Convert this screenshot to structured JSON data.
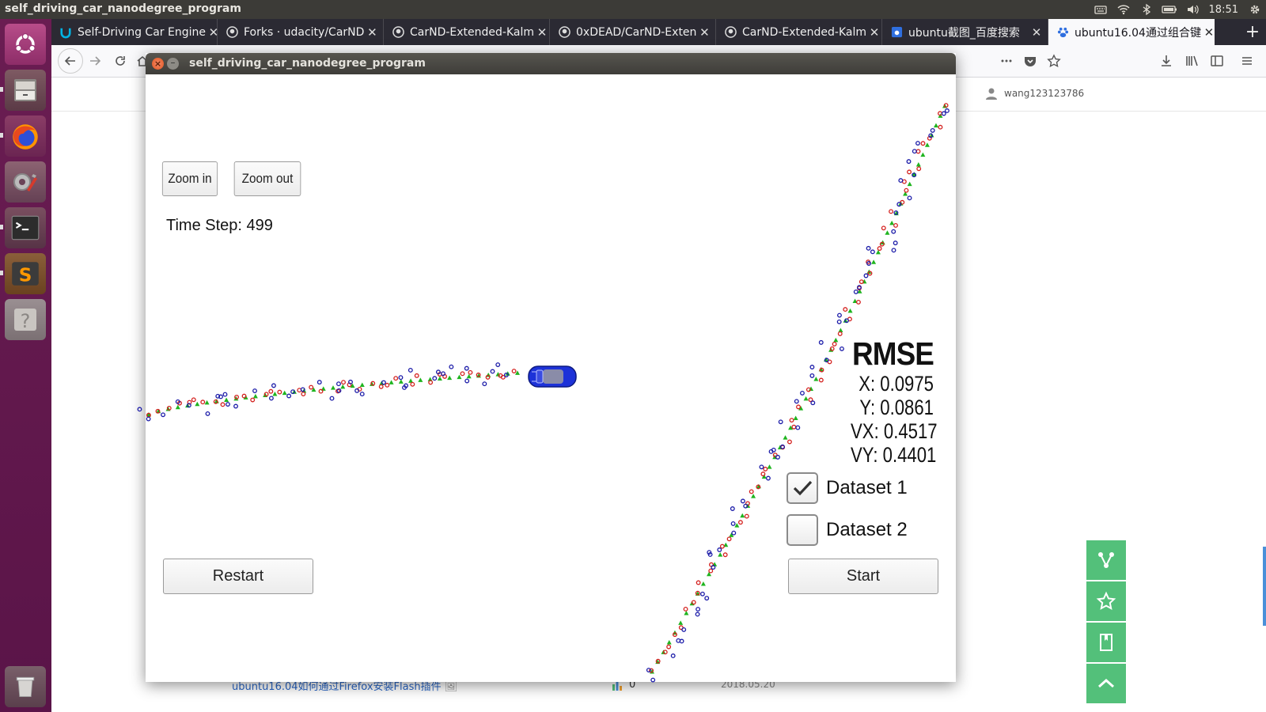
{
  "top_panel": {
    "title": "self_driving_car_nanodegree_program",
    "time": "18:51"
  },
  "launcher": {
    "items": [
      "ubuntu-logo",
      "files",
      "firefox",
      "system-settings",
      "terminal",
      "sublime-text",
      "help"
    ]
  },
  "browser": {
    "tabs": [
      {
        "label": "Self-Driving Car Engine",
        "icon": "udacity-icon"
      },
      {
        "label": "Forks · udacity/CarND",
        "icon": "github-icon"
      },
      {
        "label": "CarND-Extended-Kalm",
        "icon": "github-icon"
      },
      {
        "label": "0xDEAD/CarND-Exten",
        "icon": "github-icon"
      },
      {
        "label": "CarND-Extended-Kalm",
        "icon": "github-icon"
      },
      {
        "label": "ubuntu截图_百度搜索",
        "icon": "baidu-icon"
      },
      {
        "label": "ubuntu16.04通过组合键",
        "icon": "baidu-icon"
      }
    ],
    "active_tab": 6
  },
  "webpage": {
    "username": "wang123123786",
    "article_link": "ubuntu16.04如何通过Firefox安装Flash插件",
    "article_count": "0",
    "article_date": "2018.05.20"
  },
  "simulator": {
    "window_title": "self_driving_car_nanodegree_program",
    "zoom_in_label": "Zoom in",
    "zoom_out_label": "Zoom out",
    "time_step_label": "Time Step:",
    "time_step_value": "499",
    "rmse": {
      "title": "RMSE",
      "x": "X: 0.0975",
      "y": "Y: 0.0861",
      "vx": "VX: 0.4517",
      "vy": "VY: 0.4401"
    },
    "dataset_1_label": "Dataset 1",
    "dataset_1_checked": true,
    "dataset_2_label": "Dataset 2",
    "dataset_2_checked": false,
    "restart_label": "Restart",
    "start_label": "Start",
    "colors": {
      "ground_truth": "#1fb41f",
      "lidar": "#d4201e",
      "radar": "#1a1aa8",
      "car": "#1d32d8"
    }
  }
}
